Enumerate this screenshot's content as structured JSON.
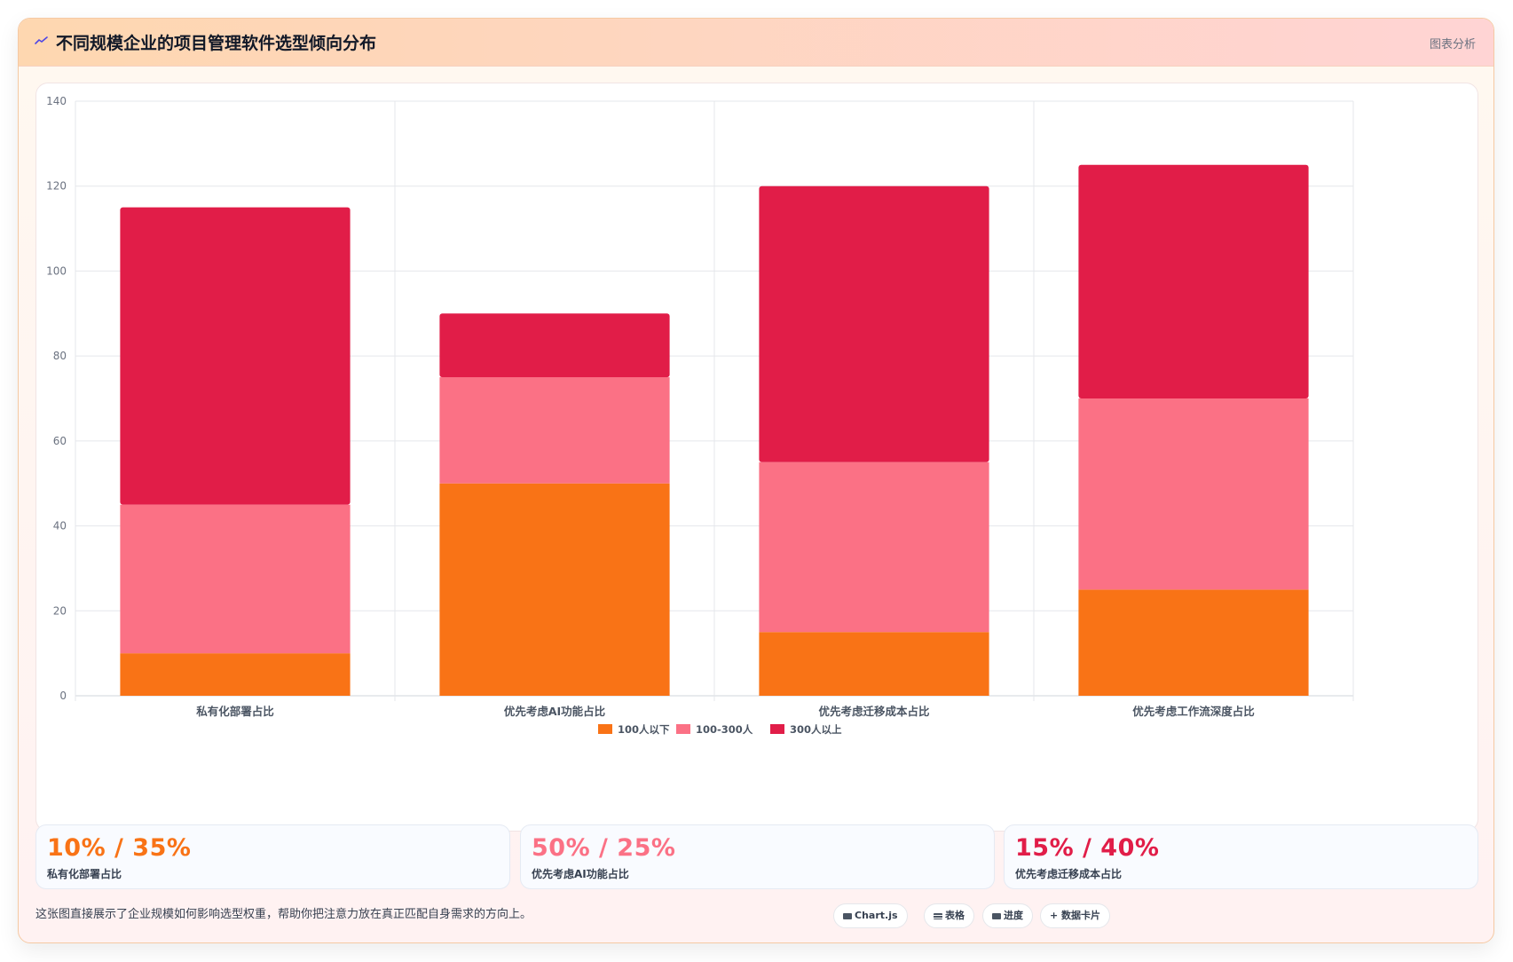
{
  "header": {
    "title": "不同规模企业的项目管理软件选型倾向分布",
    "tag": "图表分析"
  },
  "colors": {
    "orange": "#f97316",
    "pink": "#fb7185",
    "crimson": "#e11d48"
  },
  "chart_data": {
    "type": "bar",
    "stacked": true,
    "categories": [
      "私有化部署占比",
      "优先考虑AI功能占比",
      "优先考虑迁移成本占比",
      "优先考虑工作流深度占比"
    ],
    "series": [
      {
        "name": "100人以下",
        "color": "#f97316",
        "values": [
          10,
          50,
          15,
          25
        ]
      },
      {
        "name": "100-300人",
        "color": "#fb7185",
        "values": [
          35,
          25,
          40,
          45
        ]
      },
      {
        "name": "300人以上",
        "color": "#e11d48",
        "values": [
          70,
          15,
          65,
          55
        ]
      }
    ],
    "ylim": [
      0,
      140
    ],
    "yticks": [
      0,
      20,
      40,
      60,
      80,
      100,
      120,
      140
    ],
    "grid": true,
    "legend": "bottom"
  },
  "stats": [
    {
      "value": "10% / 35%",
      "label": "私有化部署占比",
      "color": "#f97316"
    },
    {
      "value": "50% / 25%",
      "label": "优先考虑AI功能占比",
      "color": "#fb7185"
    },
    {
      "value": "15% / 40%",
      "label": "优先考虑迁移成本占比",
      "color": "#e11d48"
    }
  ],
  "footnote": "这张图直接展示了企业规模如何影响选型权重，帮助你把注意力放在真正匹配自身需求的方向上。",
  "pills": [
    {
      "label": "Chart.js",
      "icon": "chart-icon"
    },
    {
      "label": "表格",
      "icon": "table-icon"
    },
    {
      "label": "进度",
      "icon": "progress-icon"
    },
    {
      "label": "+ 数据卡片",
      "icon": ""
    }
  ]
}
